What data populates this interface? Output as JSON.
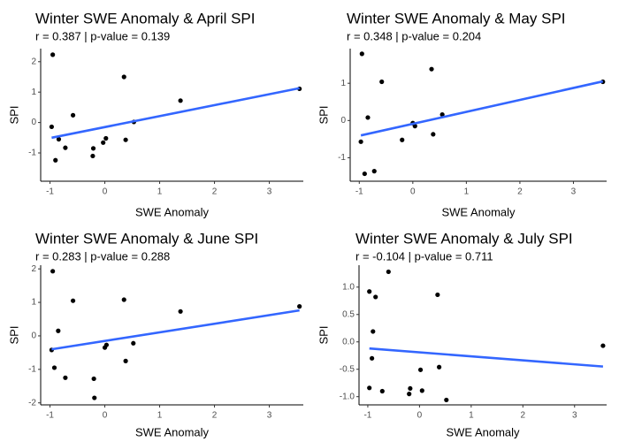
{
  "colors": {
    "point": "#000000",
    "fit_line": "#3366ff",
    "background": "#ffffff"
  },
  "chart_data": [
    {
      "type": "scatter",
      "title": "Winter SWE Anomaly & April SPI",
      "subtitle": "r = 0.387 | p-value = 0.139",
      "xlabel": "SWE Anomaly",
      "ylabel": "SPI",
      "xlim": [
        -1.17,
        3.62
      ],
      "ylim": [
        -1.93,
        2.43
      ],
      "xticks": [
        -1,
        0,
        1,
        2,
        3
      ],
      "yticks": [
        -1,
        0,
        1,
        2
      ],
      "xtick_labels": [
        "-1",
        "0",
        "1",
        "2",
        "3"
      ],
      "ytick_labels": [
        "-1",
        "0",
        "1",
        "2"
      ],
      "grid": false,
      "points": {
        "x": [
          -0.97,
          -0.95,
          -0.9,
          -0.84,
          -0.72,
          -0.58,
          -0.22,
          -0.21,
          -0.03,
          0.02,
          0.35,
          0.38,
          0.53,
          1.38,
          3.55
        ],
        "y": [
          -0.14,
          2.23,
          -1.24,
          -0.55,
          -0.83,
          0.24,
          -1.1,
          -0.85,
          -0.66,
          -0.52,
          1.5,
          -0.57,
          0.02,
          0.72,
          1.11
        ]
      },
      "trend_line": {
        "x": [
          -0.97,
          3.55
        ],
        "y": [
          -0.5,
          1.13
        ]
      }
    },
    {
      "type": "scatter",
      "title": "Winter SWE Anomaly & May SPI",
      "subtitle": "r = 0.348 | p-value = 0.204",
      "xlabel": "SWE Anomaly",
      "ylabel": "SPI",
      "xlim": [
        -1.17,
        3.62
      ],
      "ylim": [
        -1.63,
        1.93
      ],
      "xticks": [
        -1,
        0,
        1,
        2,
        3
      ],
      "yticks": [
        -1,
        0,
        1
      ],
      "xtick_labels": [
        "-1",
        "0",
        "1",
        "2",
        "3"
      ],
      "ytick_labels": [
        "-1",
        "0",
        "1"
      ],
      "grid": false,
      "points": {
        "x": [
          -0.97,
          -0.95,
          -0.9,
          -0.84,
          -0.72,
          -0.58,
          -0.2,
          0.0,
          0.04,
          0.35,
          0.38,
          0.55,
          3.55
        ],
        "y": [
          -0.57,
          1.79,
          -1.43,
          0.08,
          -1.36,
          1.04,
          -0.52,
          -0.07,
          -0.15,
          1.38,
          -0.37,
          0.16,
          1.04
        ]
      },
      "trend_line": {
        "x": [
          -0.97,
          3.55
        ],
        "y": [
          -0.4,
          1.05
        ]
      }
    },
    {
      "type": "scatter",
      "title": "Winter SWE Anomaly & June SPI",
      "subtitle": "r = 0.283 | p-value = 0.288",
      "xlabel": "SWE Anomaly",
      "ylabel": "SPI",
      "xlim": [
        -1.17,
        3.62
      ],
      "ylim": [
        -2.06,
        2.11
      ],
      "xticks": [
        -1,
        0,
        1,
        2,
        3
      ],
      "yticks": [
        -2,
        -1,
        0,
        1,
        2
      ],
      "xtick_labels": [
        "-1",
        "0",
        "1",
        "2",
        "3"
      ],
      "ytick_labels": [
        "-2",
        "-1",
        "0",
        "1",
        "2"
      ],
      "grid": false,
      "points": {
        "x": [
          -0.97,
          -0.95,
          -0.92,
          -0.85,
          -0.72,
          -0.58,
          -0.2,
          -0.19,
          0.0,
          0.03,
          0.35,
          0.38,
          0.52,
          1.38,
          3.55
        ],
        "y": [
          -0.42,
          1.93,
          -0.95,
          0.15,
          -1.25,
          1.05,
          -1.28,
          -1.85,
          -0.35,
          -0.27,
          1.08,
          -0.75,
          -0.22,
          0.73,
          0.88
        ]
      },
      "trend_line": {
        "x": [
          -0.97,
          3.55
        ],
        "y": [
          -0.4,
          0.76
        ]
      }
    },
    {
      "type": "scatter",
      "title": "Winter SWE Anomaly & July SPI",
      "subtitle": "r = -0.104 | p-value = 0.711",
      "xlabel": "SWE Anomaly",
      "ylabel": "SPI",
      "xlim": [
        -1.17,
        3.62
      ],
      "ylim": [
        -1.15,
        1.4
      ],
      "xticks": [
        -1,
        0,
        1,
        2,
        3
      ],
      "yticks": [
        -1.0,
        -0.5,
        0.0,
        0.5,
        1.0
      ],
      "xtick_labels": [
        "-1",
        "0",
        "1",
        "2",
        "3"
      ],
      "ytick_labels": [
        "-1.0",
        "-0.5",
        "0.0",
        "0.5",
        "1.0"
      ],
      "grid": false,
      "points": {
        "x": [
          -0.97,
          -0.97,
          -0.92,
          -0.9,
          -0.85,
          -0.72,
          -0.6,
          -0.2,
          -0.18,
          0.02,
          0.05,
          0.35,
          0.38,
          0.52,
          3.55
        ],
        "y": [
          0.92,
          -0.84,
          -0.3,
          0.19,
          0.82,
          -0.9,
          1.28,
          -0.95,
          -0.85,
          -0.51,
          -0.89,
          0.86,
          -0.46,
          -1.06,
          -0.07
        ]
      },
      "trend_line": {
        "x": [
          -0.97,
          3.55
        ],
        "y": [
          -0.12,
          -0.45
        ]
      }
    }
  ]
}
